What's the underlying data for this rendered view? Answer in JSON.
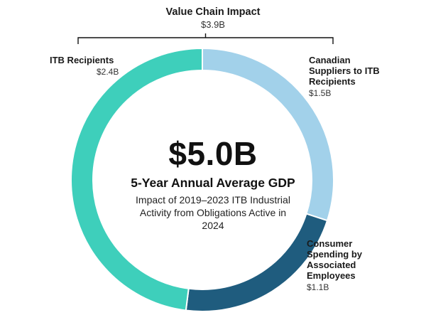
{
  "value_chain": {
    "title": "Value Chain Impact",
    "value": "$3.9B"
  },
  "center": {
    "total": "$5.0B",
    "subtitle": "5-Year Annual Average GDP",
    "description": "Impact of 2019–2023 ITB Industrial Activity from Obligations Active in 2024"
  },
  "chart_data": {
    "type": "pie",
    "categories": [
      "ITB Recipients",
      "Canadian Suppliers to ITB Recipients",
      "Consumer Spending by Associated Employees"
    ],
    "values": [
      2.4,
      1.5,
      1.1
    ],
    "value_labels": [
      "$2.4B",
      "$1.5B",
      "$1.1B"
    ],
    "colors": [
      "#3ECFBB",
      "#A2D1EA",
      "#1F5C7E"
    ]
  },
  "labels": [
    {
      "name_lines": [
        "ITB Recipients"
      ],
      "value": "$2.4B"
    },
    {
      "name_lines": [
        "Canadian",
        "Suppliers to ITB",
        "Recipients"
      ],
      "value": "$1.5B"
    },
    {
      "name_lines": [
        "Consumer",
        "Spending by",
        "Associated",
        "Employees"
      ],
      "value": "$1.1B"
    }
  ]
}
